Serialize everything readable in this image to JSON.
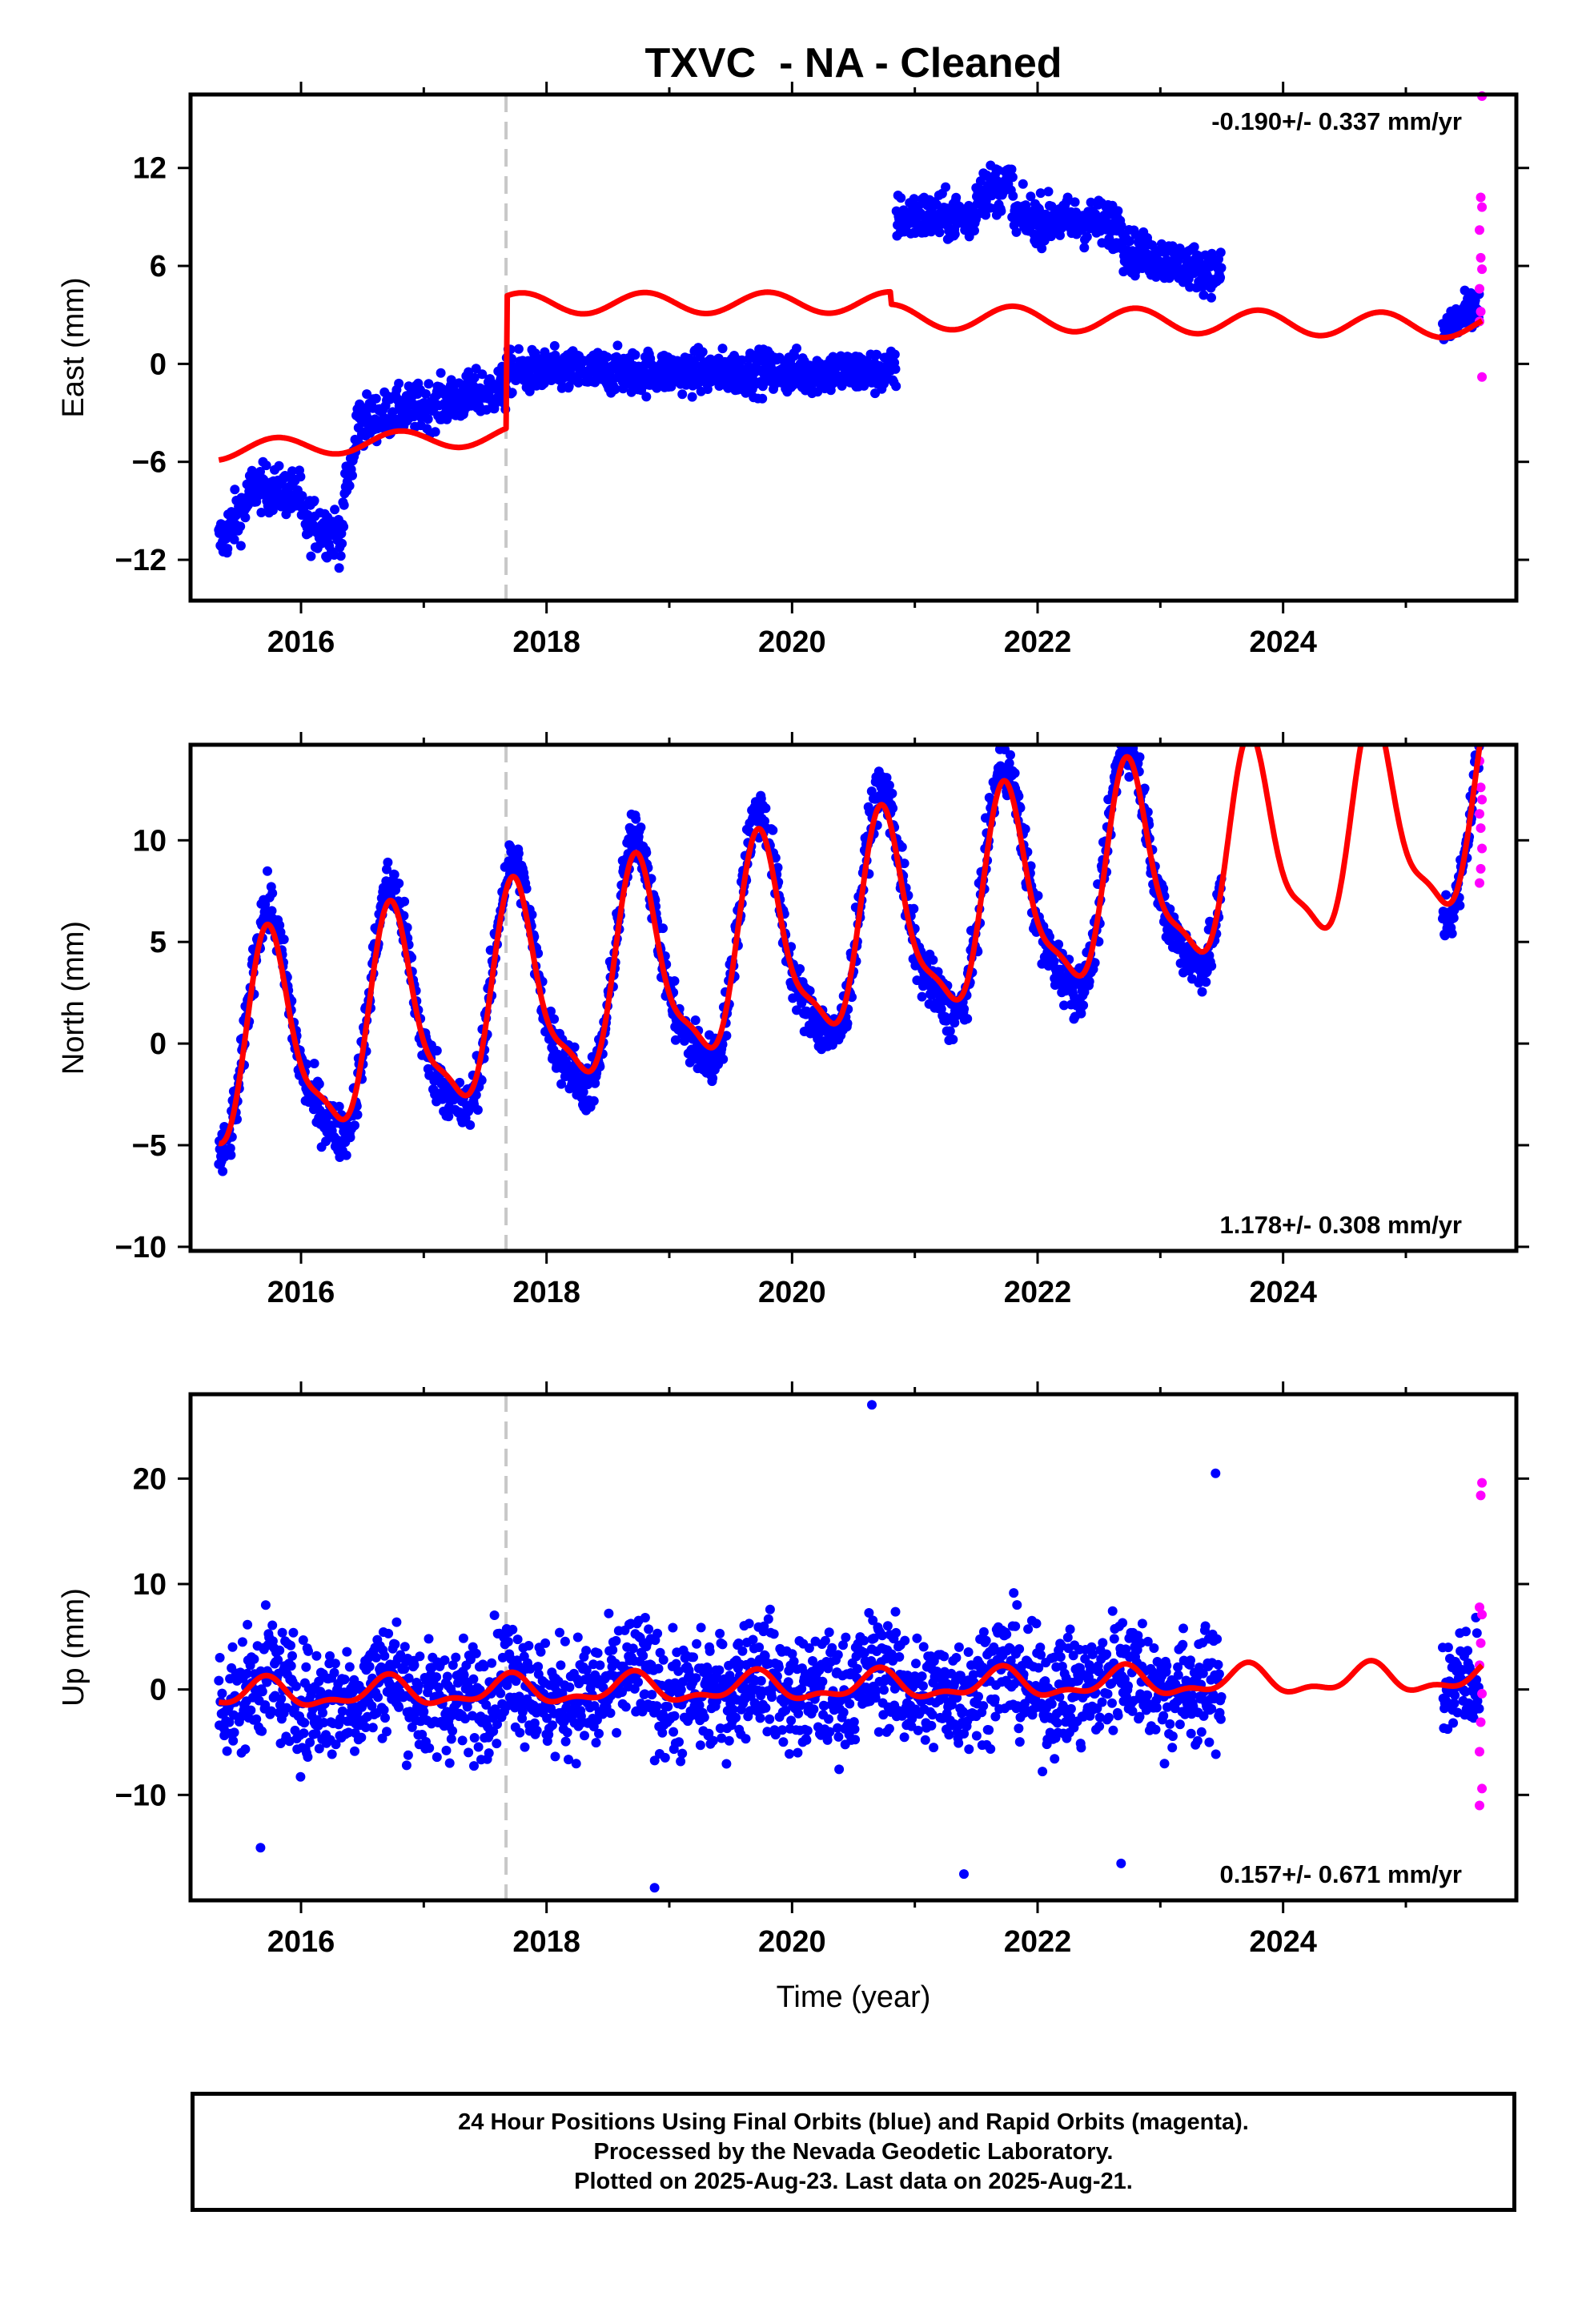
{
  "title": "TXVC  - NA - Cleaned",
  "xlabel": "Time (year)",
  "footer": {
    "line1": "24 Hour Positions Using Final Orbits (blue) and Rapid Orbits (magenta).",
    "line2": "Processed by the Nevada Geodetic Laboratory.",
    "line3": "Plotted on 2025-Aug-23. Last data on 2025-Aug-21."
  },
  "colors": {
    "final_orbits": "#0000ff",
    "rapid_orbits": "#ff00ff",
    "model_fit": "#ff0000",
    "event_line": "#c8c8c8",
    "axes": "#000000"
  },
  "chart_data": [
    {
      "type": "scatter",
      "component": "east",
      "ylabel": "East (mm)",
      "rate_label": "-0.190+/- 0.337 mm/yr",
      "rate_position": "top-right",
      "xlim": [
        2015.1,
        2025.9
      ],
      "ylim": [
        -14.5,
        16.5
      ],
      "xticks": [
        2016,
        2018,
        2020,
        2022,
        2024
      ],
      "yticks": [
        -12,
        -6,
        0,
        6,
        12
      ],
      "event_lines": [
        2017.67
      ],
      "final_series": [
        {
          "t0": 2015.33,
          "t1": 2015.6,
          "y0": -11.0,
          "y1": -8.0,
          "noise": 1.5
        },
        {
          "t0": 2015.6,
          "t1": 2016.0,
          "y0": -7.5,
          "y1": -8.0,
          "noise": 1.3
        },
        {
          "t0": 2016.0,
          "t1": 2016.35,
          "y0": -9.5,
          "y1": -10.5,
          "noise": 1.5
        },
        {
          "t0": 2016.35,
          "t1": 2016.45,
          "y0": -8.0,
          "y1": -5.0,
          "noise": 1.3
        },
        {
          "t0": 2016.45,
          "t1": 2017.67,
          "y0": -3.5,
          "y1": -1.5,
          "noise": 1.3
        },
        {
          "t0": 2017.67,
          "t1": 2020.85,
          "y0": -0.5,
          "y1": -0.5,
          "noise": 1.2
        },
        {
          "t0": 2020.85,
          "t1": 2021.5,
          "y0": 9.0,
          "y1": 9.0,
          "noise": 1.3
        },
        {
          "t0": 2021.5,
          "t1": 2021.8,
          "y0": 10.5,
          "y1": 11.0,
          "noise": 1.4
        },
        {
          "t0": 2021.8,
          "t1": 2022.7,
          "y0": 9.0,
          "y1": 8.5,
          "noise": 1.3
        },
        {
          "t0": 2022.7,
          "t1": 2023.5,
          "y0": 7.0,
          "y1": 5.5,
          "noise": 1.2
        },
        {
          "t0": 2025.3,
          "t1": 2025.6,
          "y0": 2.0,
          "y1": 3.5,
          "noise": 1.2
        }
      ],
      "rapid_points": [
        [
          2025.62,
          16.4
        ],
        [
          2025.61,
          10.2
        ],
        [
          2025.62,
          9.6
        ],
        [
          2025.6,
          8.2
        ],
        [
          2025.61,
          6.5
        ],
        [
          2025.62,
          5.8
        ],
        [
          2025.6,
          4.6
        ],
        [
          2025.61,
          3.2
        ],
        [
          2025.6,
          2.6
        ],
        [
          2025.62,
          -0.8
        ]
      ],
      "model_segments": [
        {
          "t0": 2015.33,
          "t1": 2017.67,
          "offset": -5.3,
          "rate": 0.4,
          "amp": 0.6,
          "phase": 0.55
        },
        {
          "t0": 2017.67,
          "t1": 2020.8,
          "offset": 3.7,
          "rate": 0.02,
          "amp": 0.65,
          "phase": 0.55
        },
        {
          "t0": 2020.8,
          "t1": 2025.62,
          "offset": 2.9,
          "rate": -0.12,
          "amp": 0.75,
          "phase": 0.55
        }
      ]
    },
    {
      "type": "scatter",
      "component": "north",
      "ylabel": "North (mm)",
      "rate_label": "1.178+/- 0.308 mm/yr",
      "rate_position": "bottom-right",
      "xlim": [
        2015.1,
        2025.9
      ],
      "ylim": [
        -10.2,
        14.7
      ],
      "xticks": [
        2016,
        2018,
        2020,
        2022,
        2024
      ],
      "yticks": [
        -10,
        -5,
        0,
        5,
        10
      ],
      "event_lines": [
        2017.67
      ],
      "final_ranges": [
        [
          2015.33,
          2023.5
        ],
        [
          2025.3,
          2025.6
        ]
      ],
      "final_noise": 1.2,
      "rapid_points": [
        [
          2025.6,
          13.9
        ],
        [
          2025.61,
          12.6
        ],
        [
          2025.62,
          12.0
        ],
        [
          2025.6,
          11.3
        ],
        [
          2025.61,
          10.6
        ],
        [
          2025.62,
          9.6
        ],
        [
          2025.61,
          8.6
        ],
        [
          2025.6,
          7.9
        ]
      ],
      "model": {
        "t0": 2015.33,
        "t1": 2025.62,
        "ref": 2015.5,
        "offset": -0.5,
        "rate": 1.178,
        "amp": 4.8,
        "phase": 0.5,
        "amp2": 1.4,
        "phase2": 0.08
      }
    },
    {
      "type": "scatter",
      "component": "up",
      "ylabel": "Up (mm)",
      "rate_label": "0.157+/- 0.671 mm/yr",
      "rate_position": "bottom-right",
      "xlim": [
        2015.1,
        2025.9
      ],
      "ylim": [
        -20,
        28
      ],
      "xticks": [
        2016,
        2018,
        2020,
        2022,
        2024
      ],
      "yticks": [
        -10,
        0,
        10,
        20
      ],
      "event_lines": [
        2017.67
      ],
      "final_ranges": [
        [
          2015.33,
          2023.5
        ],
        [
          2025.3,
          2025.6
        ]
      ],
      "final_noise": 5.0,
      "outliers": [
        [
          2020.65,
          27.0
        ],
        [
          2021.4,
          -17.5
        ],
        [
          2018.88,
          -18.8
        ],
        [
          2023.45,
          20.5
        ],
        [
          2022.68,
          -16.5
        ],
        [
          2015.67,
          -15.0
        ]
      ],
      "rapid_points": [
        [
          2025.62,
          19.6
        ],
        [
          2025.61,
          18.4
        ],
        [
          2025.6,
          7.8
        ],
        [
          2025.62,
          7.1
        ],
        [
          2025.61,
          4.4
        ],
        [
          2025.6,
          2.3
        ],
        [
          2025.62,
          -0.4
        ],
        [
          2025.61,
          -3.1
        ],
        [
          2025.6,
          -5.9
        ],
        [
          2025.62,
          -9.4
        ],
        [
          2025.6,
          -11.0
        ]
      ],
      "model": {
        "t0": 2015.33,
        "t1": 2025.62,
        "ref": 2015.5,
        "offset": -0.5,
        "rate": 0.157,
        "amp": 1.2,
        "phase": 0.45,
        "amp2": 0.6,
        "phase2": 0.1
      }
    }
  ]
}
